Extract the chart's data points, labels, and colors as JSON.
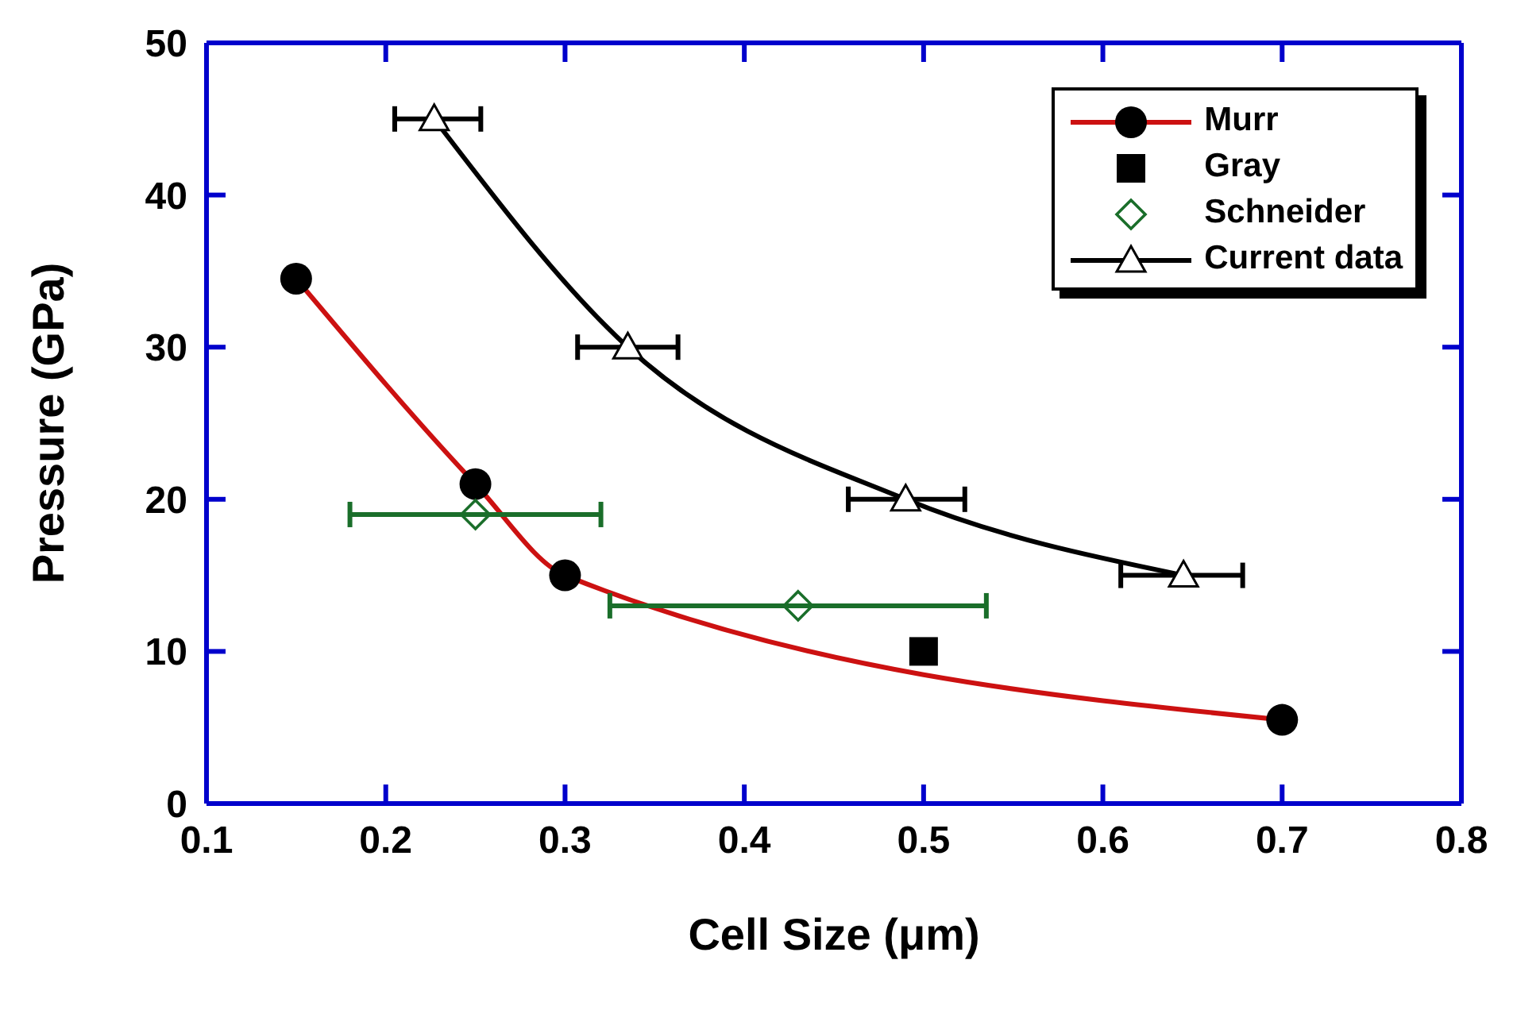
{
  "chart_data": {
    "type": "line",
    "xlabel": "Cell Size (μm)",
    "ylabel": "Pressure (GPa)",
    "xlim": [
      0.1,
      0.8
    ],
    "xticks": [
      0.1,
      0.2,
      0.3,
      0.4,
      0.5,
      0.6,
      0.7,
      0.8
    ],
    "ylim": [
      0,
      50
    ],
    "yticks": [
      0,
      10,
      20,
      30,
      40,
      50
    ],
    "grid": false,
    "legend": "top right",
    "series": [
      {
        "name": "Murr",
        "type": "line",
        "color": "#cc1111",
        "marker": "circle",
        "x": [
          0.15,
          0.25,
          0.3,
          0.7
        ],
        "values": [
          34.5,
          21,
          15,
          5.5
        ]
      },
      {
        "name": "Gray",
        "type": "scatter",
        "color": "#000000",
        "marker": "square",
        "x": [
          0.5
        ],
        "values": [
          10
        ]
      },
      {
        "name": "Schneider",
        "type": "scatter",
        "color": "#1a6e2a",
        "marker": "diamond",
        "x": [
          0.25,
          0.43
        ],
        "values": [
          19,
          13
        ],
        "xerrors": [
          [
            0.18,
            0.32
          ],
          [
            0.325,
            0.535
          ]
        ]
      },
      {
        "name": "Current data",
        "color": "#000000",
        "marker": "triangle",
        "x": [
          0.227,
          0.335,
          0.49,
          0.645
        ],
        "values": [
          45,
          30,
          20,
          15
        ],
        "xerrors": [
          [
            0.205,
            0.253
          ],
          [
            0.307,
            0.363
          ],
          [
            0.458,
            0.523
          ],
          [
            0.61,
            0.678
          ]
        ]
      }
    ]
  }
}
